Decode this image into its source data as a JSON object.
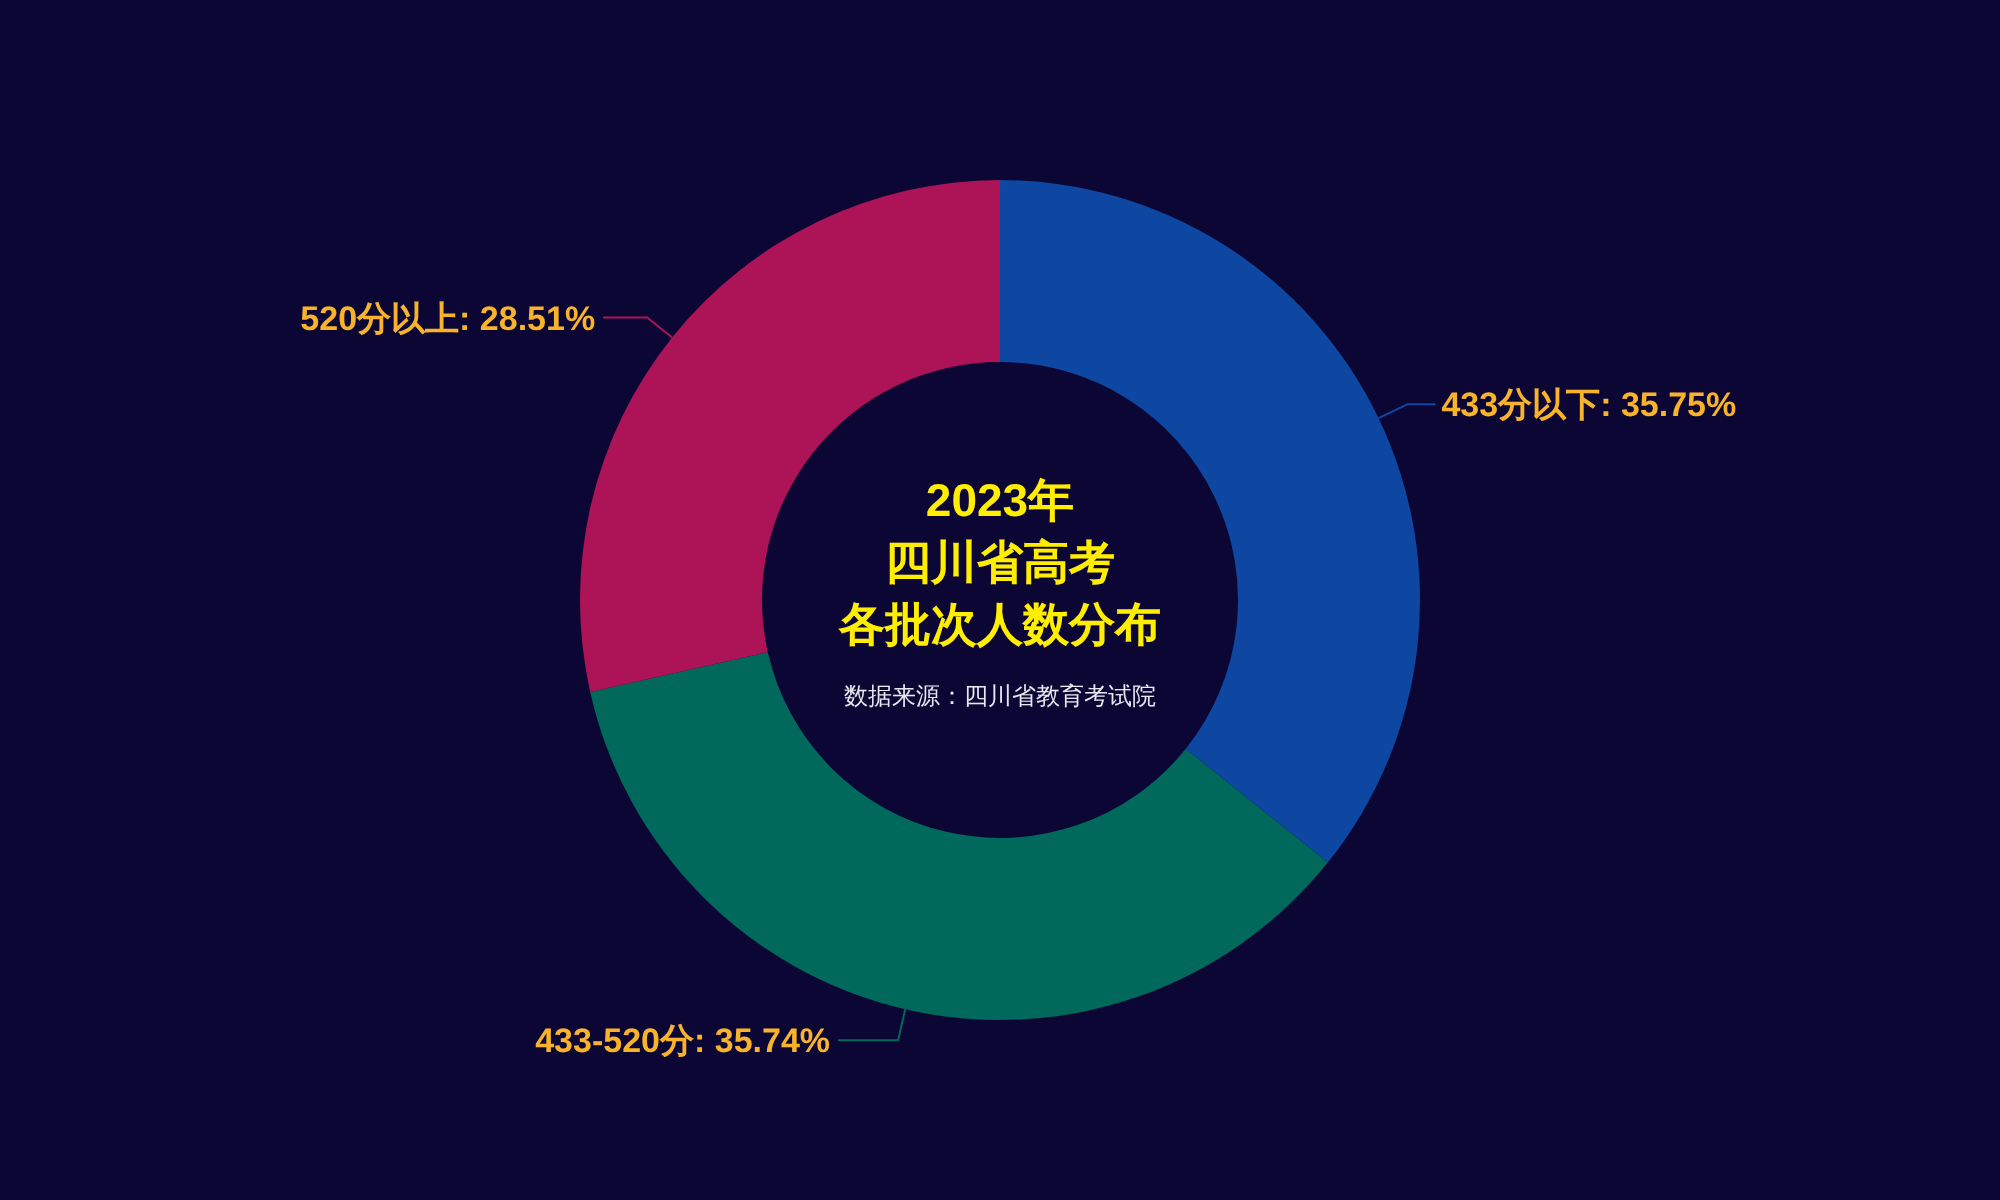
{
  "chart_data": {
    "type": "donut",
    "title": "2023年四川省高考各批次人数分布",
    "subtitle": "数据来源：四川省教育考试院",
    "categories": [
      "433分以下",
      "433-520分",
      "520分以上"
    ],
    "values": [
      35.75,
      35.74,
      28.51
    ],
    "value_labels": [
      "35.75%",
      "35.74%",
      "28.51%"
    ],
    "colors": [
      "#0d47a1",
      "#00695c",
      "#ad1457"
    ]
  }
}
